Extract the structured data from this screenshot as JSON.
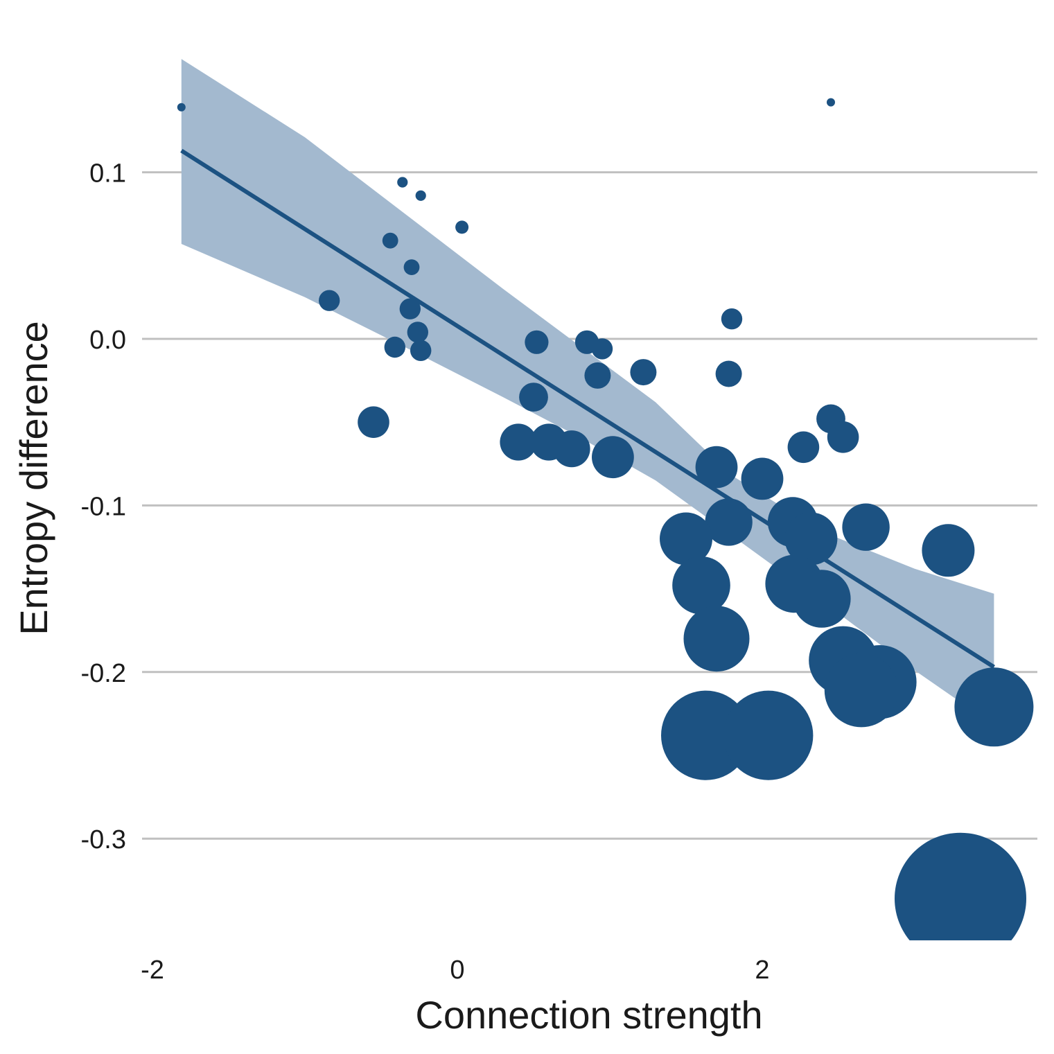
{
  "chart_data": {
    "type": "scatter",
    "xlabel": "Connection strength",
    "ylabel": "Entropy difference",
    "xlim": [
      -2.0,
      3.7
    ],
    "ylim": [
      -0.36,
      0.17
    ],
    "x_ticks": [
      {
        "value": -2,
        "label": "-2"
      },
      {
        "value": 0,
        "label": "0"
      },
      {
        "value": 2,
        "label": "2"
      }
    ],
    "y_ticks": [
      {
        "value": 0.1,
        "label": "0.1"
      },
      {
        "value": 0.0,
        "label": "0.0"
      },
      {
        "value": -0.1,
        "label": "-0.1"
      },
      {
        "value": -0.2,
        "label": "-0.2"
      },
      {
        "value": -0.3,
        "label": "-0.3"
      }
    ],
    "grid": {
      "y": true,
      "x": false
    },
    "colors": {
      "points": "#1c5282",
      "fit_line": "#1c5282",
      "ribbon": "#a3b9cf",
      "grid": "#c0c0c0"
    },
    "points": [
      {
        "x": -1.81,
        "y": 0.139,
        "size": 0.1
      },
      {
        "x": 2.45,
        "y": 0.142,
        "size": 0.1
      },
      {
        "x": -0.36,
        "y": 0.094,
        "size": 0.2
      },
      {
        "x": -0.24,
        "y": 0.086,
        "size": 0.2
      },
      {
        "x": 0.03,
        "y": 0.067,
        "size": 0.25
      },
      {
        "x": -0.44,
        "y": 0.059,
        "size": 0.3
      },
      {
        "x": -0.3,
        "y": 0.043,
        "size": 0.3
      },
      {
        "x": -0.84,
        "y": 0.023,
        "size": 0.4
      },
      {
        "x": -0.31,
        "y": 0.018,
        "size": 0.4
      },
      {
        "x": -0.26,
        "y": 0.004,
        "size": 0.4
      },
      {
        "x": -0.41,
        "y": -0.005,
        "size": 0.4
      },
      {
        "x": -0.24,
        "y": -0.007,
        "size": 0.4
      },
      {
        "x": 1.8,
        "y": 0.012,
        "size": 0.4
      },
      {
        "x": 0.52,
        "y": -0.002,
        "size": 0.45
      },
      {
        "x": 0.85,
        "y": -0.002,
        "size": 0.45
      },
      {
        "x": 0.95,
        "y": -0.006,
        "size": 0.4
      },
      {
        "x": 0.92,
        "y": -0.022,
        "size": 0.5
      },
      {
        "x": 1.22,
        "y": -0.02,
        "size": 0.5
      },
      {
        "x": 1.78,
        "y": -0.021,
        "size": 0.5
      },
      {
        "x": 0.5,
        "y": -0.035,
        "size": 0.55
      },
      {
        "x": -0.55,
        "y": -0.05,
        "size": 0.6
      },
      {
        "x": 2.45,
        "y": -0.048,
        "size": 0.55
      },
      {
        "x": 2.53,
        "y": -0.059,
        "size": 0.6
      },
      {
        "x": 2.27,
        "y": -0.065,
        "size": 0.6
      },
      {
        "x": 0.4,
        "y": -0.062,
        "size": 0.7
      },
      {
        "x": 0.6,
        "y": -0.062,
        "size": 0.7
      },
      {
        "x": 0.75,
        "y": -0.066,
        "size": 0.7
      },
      {
        "x": 1.02,
        "y": -0.071,
        "size": 0.8
      },
      {
        "x": 1.7,
        "y": -0.077,
        "size": 0.8
      },
      {
        "x": 2.0,
        "y": -0.084,
        "size": 0.8
      },
      {
        "x": 1.78,
        "y": -0.11,
        "size": 0.9
      },
      {
        "x": 2.2,
        "y": -0.11,
        "size": 0.95
      },
      {
        "x": 2.68,
        "y": -0.113,
        "size": 0.9
      },
      {
        "x": 1.5,
        "y": -0.12,
        "size": 1.0
      },
      {
        "x": 2.32,
        "y": -0.12,
        "size": 1.0
      },
      {
        "x": 3.22,
        "y": -0.127,
        "size": 1.0
      },
      {
        "x": 1.6,
        "y": -0.148,
        "size": 1.1
      },
      {
        "x": 2.21,
        "y": -0.147,
        "size": 1.1
      },
      {
        "x": 2.39,
        "y": -0.156,
        "size": 1.1
      },
      {
        "x": 1.7,
        "y": -0.18,
        "size": 1.25
      },
      {
        "x": 2.53,
        "y": -0.193,
        "size": 1.3
      },
      {
        "x": 2.77,
        "y": -0.206,
        "size": 1.4
      },
      {
        "x": 2.65,
        "y": -0.211,
        "size": 1.4
      },
      {
        "x": 3.52,
        "y": -0.221,
        "size": 1.5
      },
      {
        "x": 1.63,
        "y": -0.238,
        "size": 1.7
      },
      {
        "x": 2.04,
        "y": -0.238,
        "size": 1.7
      },
      {
        "x": 3.3,
        "y": -0.336,
        "size": 2.5
      }
    ],
    "fit_line": {
      "x": [
        -1.81,
        3.52
      ],
      "y": [
        0.113,
        -0.197
      ]
    },
    "ribbon": {
      "x": [
        -1.81,
        -1.0,
        -0.3,
        0.3,
        0.8,
        1.3,
        1.8,
        2.4,
        3.0,
        3.52
      ],
      "upper": [
        0.168,
        0.121,
        0.072,
        0.03,
        -0.004,
        -0.038,
        -0.082,
        -0.116,
        -0.138,
        -0.153
      ],
      "lower": [
        0.057,
        0.025,
        -0.007,
        -0.035,
        -0.059,
        -0.085,
        -0.118,
        -0.158,
        -0.199,
        -0.232
      ]
    }
  }
}
